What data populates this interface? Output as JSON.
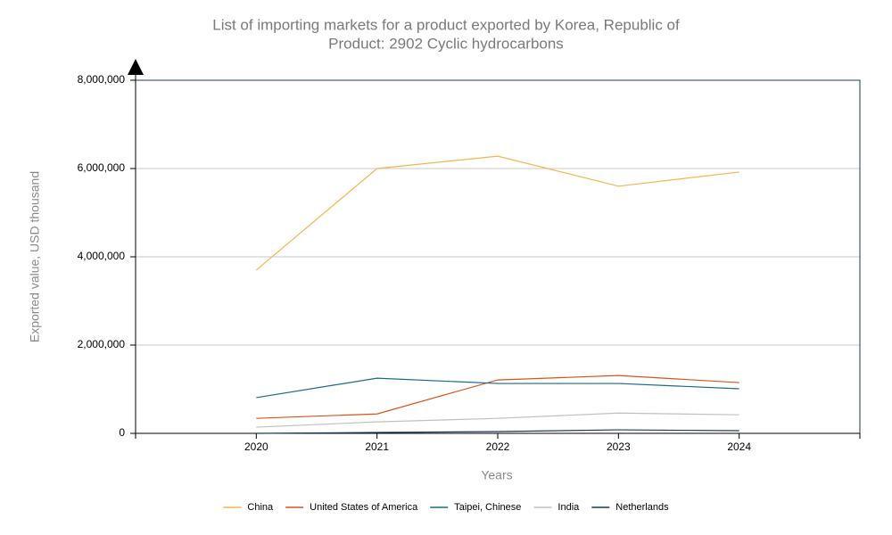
{
  "chart_data": {
    "type": "line",
    "title": "List of importing markets for a product exported by Korea, Republic of",
    "subtitle": "Product: 2902 Cyclic hydrocarbons",
    "x_label": "Years",
    "y_label": "Exported value, USD thousand",
    "x": [
      2020,
      2021,
      2022,
      2023,
      2024
    ],
    "xlim": [
      2019,
      2025
    ],
    "xticks": [
      2020,
      2021,
      2022,
      2023,
      2024
    ],
    "ylim": [
      0,
      8000000
    ],
    "yticks": [
      0,
      {
        "value": 2000000,
        "label": "2,000,000"
      },
      {
        "value": 4000000,
        "label": "4,000,000"
      },
      {
        "value": 6000000,
        "label": "6,000,000"
      },
      {
        "value": 8000000,
        "label": "8,000,000"
      }
    ],
    "grid": true,
    "legend": "bottom",
    "series": [
      {
        "name": "China",
        "color": "#f7b451",
        "values": [
          3700000,
          6000000,
          6280000,
          5600000,
          5920000
        ]
      },
      {
        "name": "United States of America",
        "color": "#d9531e",
        "values": [
          340000,
          440000,
          1210000,
          1310000,
          1150000
        ]
      },
      {
        "name": "Taipei, Chinese",
        "color": "#1a6a8c",
        "values": [
          810000,
          1250000,
          1130000,
          1130000,
          1010000
        ]
      },
      {
        "name": "India",
        "color": "#c0c0c0",
        "values": [
          140000,
          260000,
          340000,
          460000,
          420000
        ]
      },
      {
        "name": "Netherlands",
        "color": "#1b3a5c",
        "values": [
          0,
          20000,
          40000,
          80000,
          60000
        ]
      }
    ]
  }
}
